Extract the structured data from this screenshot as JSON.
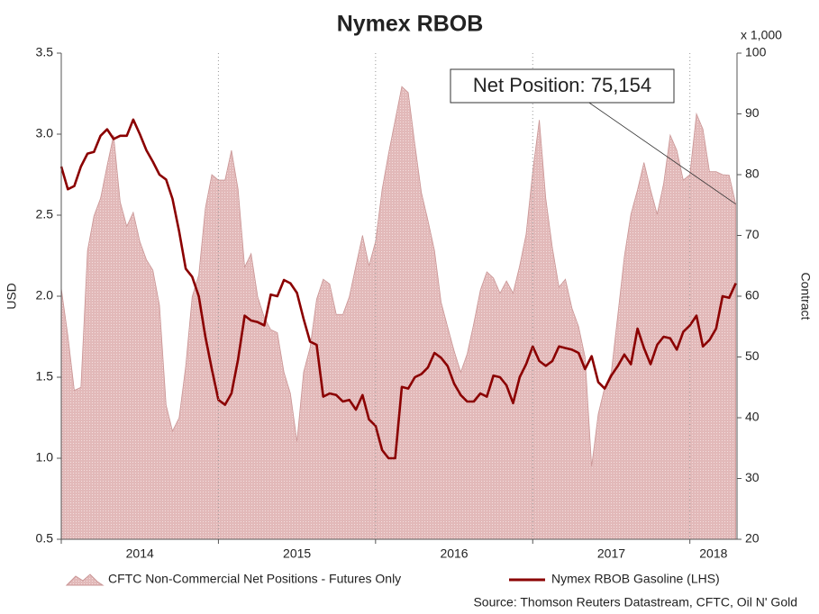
{
  "chart_data": {
    "type": "combo",
    "title": "Nymex RBOB",
    "y_label": "USD",
    "y2_label": "Contract",
    "y2_unit": "x 1,000",
    "annotation": "Net Position: 75,154",
    "source": "Source: Thomson Reuters Datastream, CFTC, Oil N' Gold",
    "xlim": [
      2014,
      2018.3
    ],
    "xticks": [
      2014,
      2015,
      2016,
      2017,
      2018
    ],
    "ylim": [
      0.5,
      3.5
    ],
    "yticks": [
      0.5,
      {
        "value": 1,
        "label": "1.0"
      },
      1.5,
      {
        "value": 2,
        "label": "2.0"
      },
      2.5,
      {
        "value": 3,
        "label": "3.0"
      },
      3.5
    ],
    "y2lim": [
      20,
      100
    ],
    "y2ticks": [
      20,
      30,
      40,
      50,
      60,
      70,
      80,
      90,
      100
    ],
    "grid": "x",
    "x": [
      2014,
      2014.042,
      2014.083,
      2014.125,
      2014.167,
      2014.208,
      2014.25,
      2014.292,
      2014.333,
      2014.375,
      2014.417,
      2014.458,
      2014.5,
      2014.542,
      2014.583,
      2014.625,
      2014.667,
      2014.708,
      2014.75,
      2014.792,
      2014.833,
      2014.875,
      2014.917,
      2014.958,
      2015,
      2015.042,
      2015.083,
      2015.125,
      2015.167,
      2015.208,
      2015.25,
      2015.292,
      2015.333,
      2015.375,
      2015.417,
      2015.458,
      2015.5,
      2015.542,
      2015.583,
      2015.625,
      2015.667,
      2015.708,
      2015.75,
      2015.792,
      2015.833,
      2015.875,
      2015.917,
      2015.958,
      2016,
      2016.042,
      2016.083,
      2016.125,
      2016.167,
      2016.208,
      2016.25,
      2016.292,
      2016.333,
      2016.375,
      2016.417,
      2016.458,
      2016.5,
      2016.542,
      2016.583,
      2016.625,
      2016.667,
      2016.708,
      2016.75,
      2016.792,
      2016.833,
      2016.875,
      2016.917,
      2016.958,
      2017,
      2017.042,
      2017.083,
      2017.125,
      2017.167,
      2017.208,
      2017.25,
      2017.292,
      2017.333,
      2017.375,
      2017.417,
      2017.458,
      2017.5,
      2017.542,
      2017.583,
      2017.625,
      2017.667,
      2017.708,
      2017.75,
      2017.792,
      2017.833,
      2017.875,
      2017.917,
      2017.958,
      2018,
      2018.042,
      2018.083,
      2018.125,
      2018.167,
      2018.208,
      2018.25,
      2018.292
    ],
    "series": [
      {
        "name": "CFTC Non-Commercial Net Positions - Futures Only",
        "type": "area",
        "axis": "y2",
        "color": "#e2b9b9",
        "values": [
          61.3,
          53.5,
          44.5,
          45,
          67.5,
          73.2,
          76.1,
          81.5,
          86.5,
          75.5,
          71.5,
          73.8,
          69,
          66,
          64.3,
          58.5,
          42.1,
          37.8,
          40,
          48.5,
          59.9,
          63.5,
          74.5,
          80,
          79.1,
          79.1,
          84,
          77.6,
          64.8,
          67,
          59.9,
          56.5,
          54.5,
          54,
          47.5,
          44,
          36.1,
          47.5,
          51.5,
          59.5,
          62.8,
          62,
          57,
          57,
          59.9,
          65,
          70,
          65,
          69,
          77.6,
          83.5,
          89,
          94.5,
          93.5,
          85,
          77,
          72.5,
          67.5,
          59,
          55,
          51,
          47.5,
          50.5,
          55.5,
          61,
          64,
          63,
          60.5,
          62.5,
          60.5,
          65,
          70.2,
          80.5,
          89,
          76.1,
          68,
          61.5,
          62.8,
          58,
          55,
          50,
          32,
          40.6,
          45,
          47.5,
          57,
          66.5,
          73.5,
          77.5,
          82,
          77.5,
          73.5,
          78.5,
          86.5,
          84,
          79.1,
          80,
          90,
          87.5,
          80.5,
          80.5,
          80,
          79.9,
          75.154
        ]
      },
      {
        "name": "Nymex RBOB Gasoline (LHS)",
        "type": "line",
        "axis": "y",
        "color": "#8b0000",
        "values": [
          2.8,
          2.66,
          2.68,
          2.8,
          2.88,
          2.89,
          2.99,
          3.03,
          2.97,
          2.99,
          2.99,
          3.09,
          3,
          2.9,
          2.83,
          2.75,
          2.72,
          2.6,
          2.4,
          2.17,
          2.12,
          2,
          1.75,
          1.55,
          1.36,
          1.33,
          1.4,
          1.61,
          1.88,
          1.85,
          1.84,
          1.82,
          2.01,
          2,
          2.1,
          2.08,
          2.02,
          1.86,
          1.72,
          1.7,
          1.38,
          1.4,
          1.39,
          1.35,
          1.36,
          1.3,
          1.39,
          1.24,
          1.2,
          1.05,
          1,
          1,
          1.44,
          1.43,
          1.5,
          1.52,
          1.56,
          1.65,
          1.62,
          1.57,
          1.46,
          1.39,
          1.35,
          1.35,
          1.4,
          1.38,
          1.51,
          1.5,
          1.45,
          1.34,
          1.5,
          1.58,
          1.69,
          1.6,
          1.57,
          1.6,
          1.69,
          1.68,
          1.67,
          1.65,
          1.55,
          1.63,
          1.47,
          1.43,
          1.51,
          1.57,
          1.64,
          1.58,
          1.8,
          1.68,
          1.58,
          1.7,
          1.75,
          1.74,
          1.67,
          1.78,
          1.82,
          1.88,
          1.69,
          1.73,
          1.8,
          2,
          1.99,
          2.08
        ]
      }
    ]
  }
}
